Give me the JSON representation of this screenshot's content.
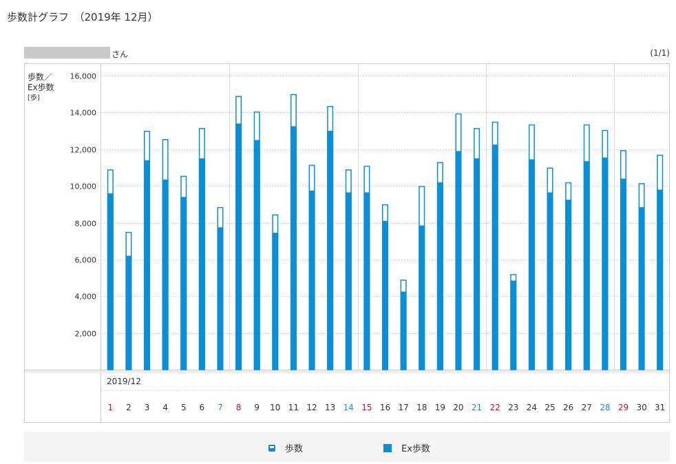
{
  "page": {
    "title": "歩数計グラフ　（2019年 12月）",
    "user_suffix": "さん",
    "page_indicator": "(1/1)"
  },
  "chart_data": {
    "type": "bar",
    "ylabel_line1": "歩数／",
    "ylabel_line2": "Ex歩数",
    "yunit": "[歩]",
    "ylim": [
      0,
      16000
    ],
    "yticks": [
      2000,
      4000,
      6000,
      8000,
      10000,
      12000,
      14000,
      16000
    ],
    "ytick_labels": [
      "2,000",
      "4,000",
      "6,000",
      "8,000",
      "10,000",
      "12,000",
      "14,000",
      "16,000"
    ],
    "month_label": "2019/12",
    "categories": [
      "1",
      "2",
      "3",
      "4",
      "5",
      "6",
      "7",
      "8",
      "9",
      "10",
      "11",
      "12",
      "13",
      "14",
      "15",
      "16",
      "17",
      "18",
      "19",
      "20",
      "21",
      "22",
      "23",
      "24",
      "25",
      "26",
      "27",
      "28",
      "29",
      "30",
      "31"
    ],
    "day_types": [
      "holiday",
      "weekday",
      "weekday",
      "weekday",
      "weekday",
      "weekday",
      "saturday",
      "holiday",
      "weekday",
      "weekday",
      "weekday",
      "weekday",
      "weekday",
      "saturday",
      "holiday",
      "weekday",
      "weekday",
      "weekday",
      "weekday",
      "weekday",
      "saturday",
      "holiday",
      "weekday",
      "weekday",
      "weekday",
      "weekday",
      "weekday",
      "saturday",
      "holiday",
      "weekday",
      "weekday"
    ],
    "series": [
      {
        "name": "歩数",
        "values": [
          10900,
          7500,
          13000,
          12550,
          10550,
          13150,
          8850,
          14900,
          14050,
          8450,
          15000,
          11150,
          14350,
          10900,
          11100,
          9000,
          4900,
          10000,
          11300,
          13950,
          13150,
          13500,
          5200,
          13350,
          11000,
          10200,
          13350,
          13050,
          11950,
          10150,
          11700
        ]
      },
      {
        "name": "Ex歩数",
        "values": [
          9600,
          6200,
          11400,
          10350,
          9400,
          11500,
          7750,
          13400,
          12500,
          7450,
          13250,
          9750,
          13000,
          9650,
          9650,
          8100,
          4250,
          7850,
          10200,
          11900,
          11500,
          12250,
          4850,
          11450,
          9650,
          9250,
          11350,
          11550,
          10400,
          8850,
          9800
        ]
      }
    ],
    "colors": {
      "bar": "#0a8fd6",
      "holiday": "#c8102e",
      "saturday": "#1a8fd8",
      "weekday": "#333333",
      "grid": "#d8d8d8",
      "frame": "#cccccc"
    }
  },
  "legend": {
    "steps_label": "歩数",
    "ex_label": "Ex歩数"
  }
}
